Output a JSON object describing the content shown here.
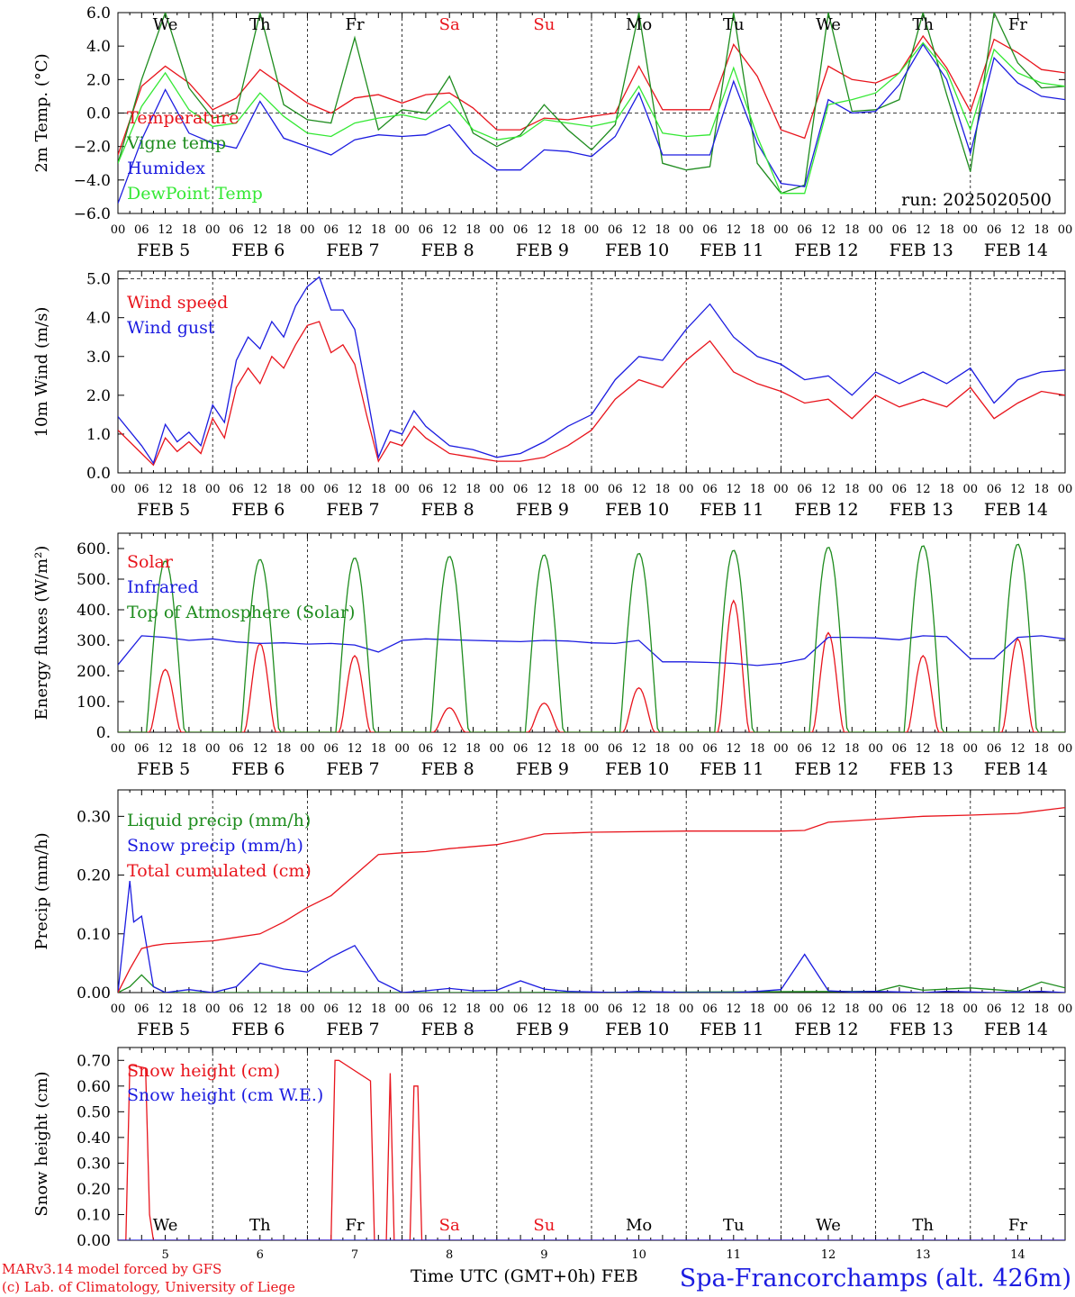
{
  "days": [
    {
      "label": "FEB  5",
      "dow": "We",
      "num": "5",
      "weekend": false
    },
    {
      "label": "FEB  6",
      "dow": "Th",
      "num": "6",
      "weekend": false
    },
    {
      "label": "FEB  7",
      "dow": "Fr",
      "num": "7",
      "weekend": false
    },
    {
      "label": "FEB  8",
      "dow": "Sa",
      "num": "8",
      "weekend": true
    },
    {
      "label": "FEB  9",
      "dow": "Su",
      "num": "9",
      "weekend": true
    },
    {
      "label": "FEB 10",
      "dow": "Mo",
      "num": "10",
      "weekend": false
    },
    {
      "label": "FEB 11",
      "dow": "Tu",
      "num": "11",
      "weekend": false
    },
    {
      "label": "FEB 12",
      "dow": "We",
      "num": "12",
      "weekend": false
    },
    {
      "label": "FEB 13",
      "dow": "Th",
      "num": "13",
      "weekend": false
    },
    {
      "label": "FEB 14",
      "dow": "Fr",
      "num": "14",
      "weekend": false
    }
  ],
  "hour_ticks": [
    "00",
    "06",
    "12",
    "18"
  ],
  "run_label": "run: 2025020500",
  "x_axis_title": "Time UTC (GMT+0h) FEB",
  "station": "Spa-Francorchamps (alt. 426m)",
  "credit_1": "MARv3.14 model forced by GFS",
  "credit_2": "(c) Lab. of Climatology, University of Liege",
  "colors": {
    "red": "#e8141c",
    "green": "#1e8c1e",
    "blue": "#1c1ce0",
    "lightgreen": "#34e834",
    "weekend": "#e8141c"
  },
  "chart_data": [
    {
      "type": "line",
      "ylabel": "2m Temp. (°C)",
      "ylim": [
        -6,
        6
      ],
      "yticks": [
        "6.0",
        "4.0",
        "2.0",
        "0.0",
        "-2.0",
        "-4.0",
        "-6.0"
      ],
      "x_unit": "hours since FEB 5 00 UTC",
      "series": [
        {
          "name": "Temperature",
          "color": "red",
          "x": [
            0,
            6,
            12,
            18,
            24,
            30,
            36,
            42,
            48,
            54,
            60,
            66,
            72,
            78,
            84,
            90,
            96,
            102,
            108,
            114,
            120,
            126,
            132,
            138,
            144,
            150,
            156,
            162,
            168,
            174,
            180,
            186,
            192,
            198,
            204,
            210,
            216,
            222,
            228,
            234,
            240
          ],
          "y": [
            -2.5,
            1.6,
            2.8,
            1.8,
            0.2,
            0.9,
            2.6,
            1.6,
            0.6,
            0,
            0.9,
            1.1,
            0.6,
            1.1,
            1.2,
            0.3,
            -1,
            -1,
            -0.3,
            -0.4,
            -0.2,
            0,
            2.8,
            0.2,
            0.2,
            0.2,
            4.1,
            2.2,
            -1,
            -1.5,
            2.8,
            2,
            1.8,
            2.4,
            4.6,
            2.7,
            0.1,
            4.4,
            3.6,
            2.6,
            2.4
          ]
        },
        {
          "name": "Vigne temp",
          "color": "green",
          "x": [
            0,
            6,
            12,
            18,
            24,
            30,
            36,
            42,
            48,
            54,
            60,
            66,
            72,
            78,
            84,
            90,
            96,
            102,
            108,
            114,
            120,
            126,
            132,
            138,
            144,
            150,
            156,
            162,
            168,
            174,
            180,
            186,
            192,
            198,
            204,
            210,
            216,
            222,
            228,
            234,
            240
          ],
          "y": [
            -3,
            2,
            6,
            1.5,
            -0.3,
            0,
            6,
            0.5,
            -0.4,
            -0.6,
            4.5,
            -1,
            0.2,
            0,
            2.2,
            -1.2,
            -2,
            -1.3,
            0.5,
            -1,
            -2.2,
            -0.7,
            6,
            -3,
            -3.4,
            -3.2,
            6,
            -3,
            -4.8,
            -4.3,
            6,
            0.1,
            0.2,
            0.8,
            6,
            1.1,
            -3.5,
            6,
            3,
            1.5,
            1.6
          ]
        },
        {
          "name": "Humidex",
          "color": "blue",
          "x": [
            0,
            6,
            12,
            18,
            24,
            30,
            36,
            42,
            48,
            54,
            60,
            66,
            72,
            78,
            84,
            90,
            96,
            102,
            108,
            114,
            120,
            126,
            132,
            138,
            144,
            150,
            156,
            162,
            168,
            174,
            180,
            186,
            192,
            198,
            204,
            210,
            216,
            222,
            228,
            234,
            240
          ],
          "y": [
            -5.4,
            -1.6,
            1.4,
            -1.2,
            -1.8,
            -2.1,
            0.7,
            -1.5,
            -2,
            -2.5,
            -1.6,
            -1.3,
            -1.4,
            -1.3,
            -0.7,
            -2.4,
            -3.4,
            -3.4,
            -2.2,
            -2.3,
            -2.6,
            -1.4,
            1.2,
            -2.5,
            -2.5,
            -2.5,
            1.9,
            -1.8,
            -4.2,
            -4.4,
            0.8,
            0,
            0.1,
            1.7,
            4.1,
            2,
            -2.4,
            3.3,
            1.8,
            1,
            0.8
          ]
        },
        {
          "name": "DewPoint Temp",
          "color": "lightgreen",
          "x": [
            0,
            6,
            12,
            18,
            24,
            30,
            36,
            42,
            48,
            54,
            60,
            66,
            72,
            78,
            84,
            90,
            96,
            102,
            108,
            114,
            120,
            126,
            132,
            138,
            144,
            150,
            156,
            162,
            168,
            174,
            180,
            186,
            192,
            198,
            204,
            210,
            216,
            222,
            228,
            234,
            240
          ],
          "y": [
            -3,
            0.4,
            2.4,
            0.2,
            -0.8,
            -0.6,
            1.2,
            -0.2,
            -1.2,
            -1.4,
            -0.6,
            -0.3,
            -0.1,
            -0.4,
            0.7,
            -1,
            -1.6,
            -1.4,
            -0.4,
            -0.6,
            -0.8,
            -0.5,
            1.6,
            -1.2,
            -1.4,
            -1.3,
            2.7,
            -1.4,
            -4.8,
            -4.8,
            0.5,
            0.8,
            1.2,
            2.4,
            4.2,
            2.5,
            -1,
            3.8,
            2.4,
            1.8,
            1.6
          ]
        }
      ],
      "refline": 0
    },
    {
      "type": "line",
      "ylabel": "10m Wind (m/s)",
      "ylim": [
        0,
        5.2
      ],
      "yticks": [
        "5.0",
        "4.0",
        "3.0",
        "2.0",
        "1.0",
        "0.0"
      ],
      "refline": 5,
      "series": [
        {
          "name": "Wind speed",
          "color": "red",
          "x": [
            0,
            6,
            9,
            12,
            15,
            18,
            21,
            24,
            27,
            30,
            33,
            36,
            39,
            42,
            45,
            48,
            51,
            54,
            57,
            60,
            63,
            66,
            69,
            72,
            75,
            78,
            84,
            90,
            96,
            102,
            108,
            114,
            120,
            126,
            132,
            138,
            144,
            150,
            156,
            162,
            168,
            174,
            180,
            186,
            192,
            198,
            204,
            210,
            216,
            222,
            228,
            234,
            240
          ],
          "y": [
            1.1,
            0.5,
            0.2,
            0.9,
            0.55,
            0.8,
            0.5,
            1.4,
            0.9,
            2.2,
            2.7,
            2.3,
            3,
            2.7,
            3.3,
            3.8,
            3.9,
            3.1,
            3.3,
            2.8,
            1.5,
            0.3,
            0.8,
            0.7,
            1.2,
            0.9,
            0.5,
            0.4,
            0.3,
            0.3,
            0.4,
            0.7,
            1.1,
            1.9,
            2.4,
            2.2,
            2.9,
            3.4,
            2.6,
            2.3,
            2.1,
            1.8,
            1.9,
            1.4,
            2,
            1.7,
            1.9,
            1.7,
            2.2,
            1.4,
            1.8,
            2.1,
            2
          ]
        },
        {
          "name": "Wind gust",
          "color": "blue",
          "x": [
            0,
            6,
            9,
            12,
            15,
            18,
            21,
            24,
            27,
            30,
            33,
            36,
            39,
            42,
            45,
            48,
            51,
            54,
            57,
            60,
            63,
            66,
            69,
            72,
            75,
            78,
            84,
            90,
            96,
            102,
            108,
            114,
            120,
            126,
            132,
            138,
            144,
            150,
            156,
            162,
            168,
            174,
            180,
            186,
            192,
            198,
            204,
            210,
            216,
            222,
            228,
            234,
            240
          ],
          "y": [
            1.45,
            0.7,
            0.25,
            1.25,
            0.8,
            1.05,
            0.7,
            1.75,
            1.3,
            2.9,
            3.5,
            3.2,
            3.9,
            3.5,
            4.3,
            4.8,
            5.05,
            4.2,
            4.2,
            3.7,
            2.1,
            0.4,
            1.1,
            1,
            1.6,
            1.2,
            0.7,
            0.6,
            0.4,
            0.5,
            0.8,
            1.2,
            1.5,
            2.4,
            3,
            2.9,
            3.7,
            4.35,
            3.5,
            3,
            2.8,
            2.4,
            2.5,
            2,
            2.6,
            2.3,
            2.6,
            2.3,
            2.7,
            1.8,
            2.4,
            2.6,
            2.65
          ]
        }
      ]
    },
    {
      "type": "line",
      "ylabel": "Energy fluxes (W/m²)",
      "ylim": [
        0,
        650
      ],
      "yticks": [
        "600.",
        "500.",
        "400.",
        "300.",
        "200.",
        "100.",
        "0."
      ],
      "series": [
        {
          "name": "Solar",
          "color": "red",
          "day_peaks": [
            205,
            290,
            250,
            80,
            95,
            145,
            430,
            325,
            250,
            305
          ]
        },
        {
          "name": "Infrared",
          "color": "blue",
          "x": [
            0,
            6,
            12,
            18,
            24,
            30,
            36,
            42,
            48,
            54,
            60,
            66,
            72,
            78,
            84,
            90,
            96,
            102,
            108,
            114,
            120,
            126,
            132,
            138,
            144,
            150,
            156,
            162,
            168,
            174,
            180,
            186,
            192,
            198,
            204,
            210,
            216,
            222,
            228,
            234,
            240
          ],
          "y": [
            220,
            315,
            310,
            300,
            305,
            295,
            290,
            292,
            288,
            290,
            285,
            262,
            300,
            305,
            302,
            300,
            298,
            296,
            300,
            298,
            292,
            290,
            300,
            230,
            230,
            228,
            225,
            218,
            225,
            240,
            310,
            310,
            308,
            302,
            315,
            312,
            240,
            240,
            310,
            315,
            305
          ]
        },
        {
          "name": "Top of Atmosphere (Solar)",
          "color": "green",
          "day_peaks": [
            560,
            565,
            570,
            575,
            580,
            585,
            595,
            605,
            610,
            615
          ]
        }
      ]
    },
    {
      "type": "line",
      "ylabel": "Precip (mm/h)",
      "ylim": [
        0,
        0.345
      ],
      "yticks": [
        "0.30",
        "0.20",
        "0.10",
        "0.00"
      ],
      "series": [
        {
          "name": "Liquid precip (mm/h)",
          "color": "green",
          "x": [
            0,
            3,
            6,
            9,
            12,
            24,
            48,
            96,
            192,
            198,
            204,
            216,
            228,
            234,
            240
          ],
          "y": [
            0,
            0.01,
            0.03,
            0.01,
            0,
            0,
            0,
            0,
            0.002,
            0.012,
            0.004,
            0.008,
            0.002,
            0.018,
            0.008
          ]
        },
        {
          "name": "Snow precip (mm/h)",
          "color": "blue",
          "x": [
            0,
            3,
            4,
            6,
            9,
            12,
            18,
            24,
            30,
            36,
            42,
            48,
            54,
            60,
            66,
            72,
            78,
            84,
            90,
            96,
            102,
            108,
            114,
            120,
            126,
            132,
            138,
            144,
            150,
            156,
            162,
            168,
            174,
            180,
            186,
            192,
            198,
            204,
            210,
            216,
            222,
            228,
            234,
            240
          ],
          "y": [
            0,
            0.19,
            0.12,
            0.13,
            0.01,
            0,
            0.005,
            0,
            0.01,
            0.05,
            0.04,
            0.035,
            0.06,
            0.08,
            0.02,
            0,
            0.003,
            0.007,
            0.003,
            0.004,
            0.02,
            0.006,
            0.002,
            0.001,
            0,
            0.002,
            0.001,
            0,
            0,
            0,
            0.002,
            0.005,
            0.065,
            0.003,
            0.001,
            0.002,
            0.001,
            0,
            0.002,
            0.001,
            0,
            0.001,
            0.002,
            0
          ]
        },
        {
          "name": "Total cumulated (cm)",
          "color": "red",
          "x": [
            0,
            3,
            6,
            9,
            12,
            24,
            36,
            42,
            48,
            54,
            60,
            66,
            72,
            78,
            84,
            96,
            102,
            108,
            120,
            144,
            168,
            174,
            180,
            192,
            204,
            216,
            228,
            240
          ],
          "y": [
            0,
            0.04,
            0.075,
            0.08,
            0.083,
            0.088,
            0.1,
            0.12,
            0.145,
            0.165,
            0.2,
            0.235,
            0.238,
            0.24,
            0.245,
            0.252,
            0.26,
            0.27,
            0.273,
            0.275,
            0.275,
            0.276,
            0.29,
            0.295,
            0.3,
            0.302,
            0.305,
            0.315
          ]
        }
      ]
    },
    {
      "type": "line",
      "ylabel": "Snow height (cm)",
      "ylim": [
        0,
        0.75
      ],
      "yticks": [
        "0.70",
        "0.60",
        "0.50",
        "0.40",
        "0.30",
        "0.20",
        "0.10",
        "0.00"
      ],
      "series": [
        {
          "name": "Snow height (cm)",
          "color": "red",
          "x": [
            0,
            2,
            3,
            4,
            7,
            8,
            9,
            54,
            55,
            56,
            64,
            65,
            66,
            68,
            69,
            70,
            71,
            72,
            74,
            75,
            76,
            77,
            78,
            240
          ],
          "y": [
            0,
            0,
            0.68,
            0.68,
            0.67,
            0.1,
            0,
            0,
            0.7,
            0.7,
            0.62,
            0,
            0,
            0,
            0.65,
            0,
            0,
            0,
            0,
            0.6,
            0.6,
            0,
            0,
            0
          ]
        },
        {
          "name": "Snow height (cm W.E.)",
          "color": "blue",
          "x": [
            0,
            240
          ],
          "y": [
            0,
            0
          ]
        }
      ]
    }
  ]
}
